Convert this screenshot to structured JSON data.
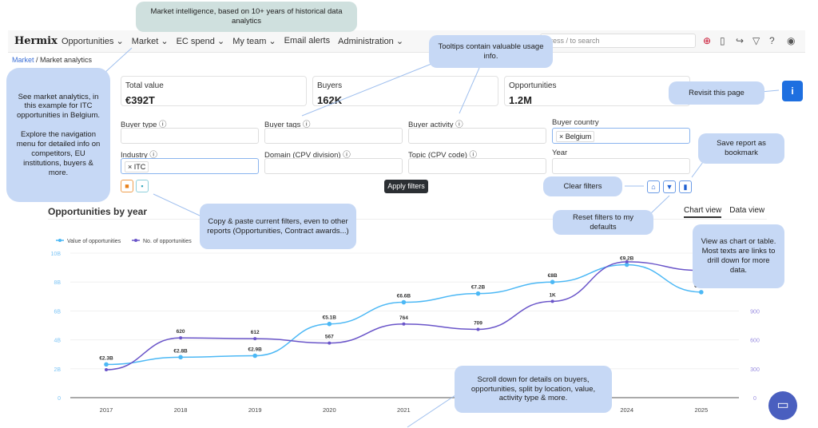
{
  "nav": {
    "logo": "Hermix",
    "menu": [
      "Opportunities ⌄",
      "Market ⌄",
      "EC spend ⌄",
      "My team ⌄",
      "Email alerts",
      "Administration ⌄"
    ],
    "search_placeholder": "Press / to search"
  },
  "breadcrumb": {
    "parent": "Market",
    "current": "Market analytics"
  },
  "kpis": [
    {
      "label": "Total value",
      "value": "€392T"
    },
    {
      "label": "Buyers",
      "value": "162K"
    },
    {
      "label": "Opportunities",
      "value": "1.2M"
    }
  ],
  "filters": {
    "buyer_type": "Buyer type ⓘ",
    "buyer_tags": "Buyer tags ⓘ",
    "buyer_activity": "Buyer activity ⓘ",
    "buyer_country": "Buyer country",
    "buyer_country_chip": "× Belgium",
    "industry": "Industry ⓘ",
    "industry_chip": "× ITC",
    "domain": "Domain (CPV division) ⓘ",
    "topic": "Topic (CPV code) ⓘ",
    "year": "Year",
    "apply": "Apply filters"
  },
  "section_title": "Opportunities by year",
  "view_tabs": {
    "chart": "Chart view",
    "data": "Data view"
  },
  "callouts": {
    "top": "Market intelligence, based on 10+ years of historical data analytics",
    "tooltips": "Tooltips contain valuable usage info.",
    "left": "See market analytics, in this example for ITC opportunities in Belgium.\n\nExplore the navigation menu for detailed info on competitors, EU institutions, buyers & more.",
    "revisit": "Revisit this page",
    "save": "Save report as bookmark",
    "clear": "Clear filters",
    "copy": "Copy & paste current filters, even to other reports (Opportunities, Contract awards...)",
    "reset": "Reset filters to my defaults",
    "view": "View as chart or table. Most texts are links to drill down for more data.",
    "scroll": "Scroll down for details on buyers, opportunities, split by location, value, activity type & more."
  },
  "colors": {
    "value_series": "#4cb8f5",
    "count_series": "#6a55c9",
    "callout": "#c6d8f5",
    "accent": "#1e6fe0"
  },
  "chart_data": {
    "type": "line",
    "categories": [
      "2017",
      "2018",
      "2019",
      "2020",
      "2021",
      "2022",
      "2023",
      "2024",
      "2025"
    ],
    "series": [
      {
        "name": "Value of opportunities",
        "axis": "left",
        "unit": "B",
        "values": [
          2.3,
          2.8,
          2.9,
          5.1,
          6.6,
          7.2,
          8,
          9.2,
          7.3
        ],
        "labels": [
          "€2.3B",
          "€2.8B",
          "€2.9B",
          "€5.1B",
          "€6.6B",
          "€7.2B",
          "€8B",
          "€9.2B",
          "€7.3B"
        ]
      },
      {
        "name": "No. of opportunities",
        "axis": "right",
        "values": [
          290,
          620,
          612,
          567,
          764,
          709,
          1000,
          1410,
          1320
        ],
        "labels": [
          "",
          "620",
          "612",
          "567",
          "764",
          "709",
          "1K",
          "",
          ""
        ]
      }
    ],
    "left_ticks": [
      "0",
      "2B",
      "4B",
      "6B",
      "8B",
      "10B"
    ],
    "ylim_left": [
      0,
      10
    ],
    "right_ticks": [
      "0",
      "300",
      "600",
      "900"
    ],
    "ylim_right": [
      0,
      1500
    ],
    "legend": "top-left",
    "grid": true
  }
}
